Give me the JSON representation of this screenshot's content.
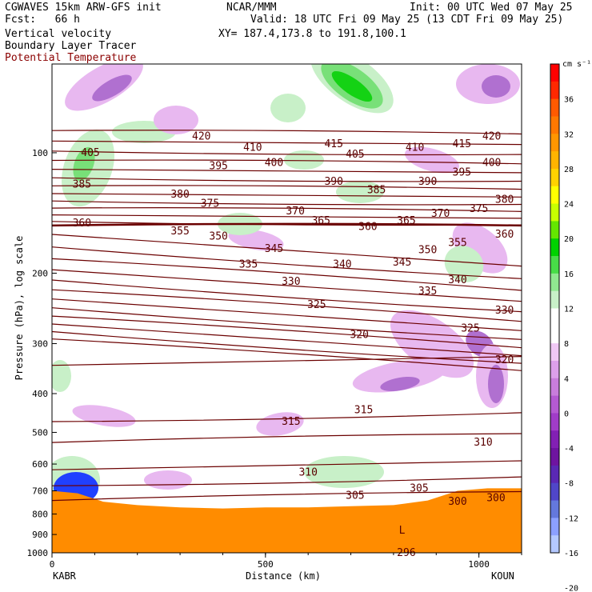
{
  "header": {
    "left": [
      "CGWAVES 15km ARW-GFS init",
      "Fcst:   66 h",
      "Vertical velocity",
      "Boundary Layer Tracer",
      "Potential Temperature"
    ],
    "center": [
      "NCAR/MMM",
      "Valid: 18 UTC Fri 09 May 25 (13 CDT Fri 09 May 25)",
      "XY= 187.4,173.8 to 191.8,100.1"
    ],
    "right": "Init: 00 UTC Wed 07 May 25"
  },
  "colors": {
    "theta": "#6b0000",
    "terrain": "#ff8c00",
    "up_light": "#c8f0c8",
    "up_mid": "#78e078",
    "up_strong": "#14d214",
    "down_light": "#e8b8f0",
    "down_mid": "#b070d0",
    "down_strong": "#8020a0"
  },
  "chart_data": {
    "type": "cross-section",
    "xlabel": "Distance (km)",
    "ylabel": "Pressure (hPa), log scale",
    "x_ticks": [
      "0",
      "500",
      "1000"
    ],
    "y_ticks": [
      "100",
      "200",
      "300",
      "400",
      "500",
      "600",
      "700",
      "800",
      "900",
      "1000"
    ],
    "xlim": [
      0,
      1100
    ],
    "ylim": [
      1000,
      60
    ],
    "left_station": "KABR",
    "right_station": "KOUN",
    "contour_labels": [
      {
        "text": "420",
        "x": 350,
        "p": 91
      },
      {
        "text": "420",
        "x": 1030,
        "p": 91
      },
      {
        "text": "410",
        "x": 470,
        "p": 97
      },
      {
        "text": "410",
        "x": 850,
        "p": 97
      },
      {
        "text": "415",
        "x": 660,
        "p": 95
      },
      {
        "text": "415",
        "x": 960,
        "p": 95
      },
      {
        "text": "405",
        "x": 90,
        "p": 100
      },
      {
        "text": "405",
        "x": 710,
        "p": 101
      },
      {
        "text": "400",
        "x": 520,
        "p": 106
      },
      {
        "text": "400",
        "x": 1030,
        "p": 106
      },
      {
        "text": "395",
        "x": 390,
        "p": 108
      },
      {
        "text": "395",
        "x": 960,
        "p": 112
      },
      {
        "text": "390",
        "x": 660,
        "p": 118
      },
      {
        "text": "390",
        "x": 880,
        "p": 118
      },
      {
        "text": "385",
        "x": 70,
        "p": 120
      },
      {
        "text": "385",
        "x": 760,
        "p": 124
      },
      {
        "text": "380",
        "x": 300,
        "p": 127
      },
      {
        "text": "380",
        "x": 1060,
        "p": 131
      },
      {
        "text": "375",
        "x": 370,
        "p": 134
      },
      {
        "text": "375",
        "x": 1000,
        "p": 138
      },
      {
        "text": "370",
        "x": 570,
        "p": 140
      },
      {
        "text": "370",
        "x": 910,
        "p": 142
      },
      {
        "text": "365",
        "x": 630,
        "p": 148
      },
      {
        "text": "365",
        "x": 830,
        "p": 148
      },
      {
        "text": "360",
        "x": 70,
        "p": 150
      },
      {
        "text": "360",
        "x": 740,
        "p": 153
      },
      {
        "text": "360",
        "x": 1060,
        "p": 160
      },
      {
        "text": "355",
        "x": 300,
        "p": 157
      },
      {
        "text": "355",
        "x": 950,
        "p": 168
      },
      {
        "text": "350",
        "x": 390,
        "p": 162
      },
      {
        "text": "350",
        "x": 880,
        "p": 175
      },
      {
        "text": "345",
        "x": 520,
        "p": 174
      },
      {
        "text": "345",
        "x": 820,
        "p": 188
      },
      {
        "text": "340",
        "x": 680,
        "p": 190
      },
      {
        "text": "340",
        "x": 950,
        "p": 208
      },
      {
        "text": "335",
        "x": 460,
        "p": 190
      },
      {
        "text": "335",
        "x": 880,
        "p": 222
      },
      {
        "text": "330",
        "x": 560,
        "p": 210
      },
      {
        "text": "330",
        "x": 1060,
        "p": 248
      },
      {
        "text": "325",
        "x": 620,
        "p": 240
      },
      {
        "text": "325",
        "x": 980,
        "p": 275
      },
      {
        "text": "320",
        "x": 720,
        "p": 285
      },
      {
        "text": "320",
        "x": 1060,
        "p": 330
      },
      {
        "text": "315",
        "x": 560,
        "p": 470
      },
      {
        "text": "315",
        "x": 730,
        "p": 440
      },
      {
        "text": "310",
        "x": 600,
        "p": 630
      },
      {
        "text": "310",
        "x": 1010,
        "p": 530
      },
      {
        "text": "305",
        "x": 710,
        "p": 720
      },
      {
        "text": "305",
        "x": 860,
        "p": 690
      },
      {
        "text": "300",
        "x": 950,
        "p": 745
      },
      {
        "text": "300",
        "x": 1040,
        "p": 730
      },
      {
        "text": "296",
        "x": 830,
        "p": 1000
      },
      {
        "text": "L",
        "x": 820,
        "p": 880
      }
    ],
    "colorbar": {
      "unit": "cm s⁻¹",
      "labels": [
        "36",
        "32",
        "28",
        "24",
        "20",
        "16",
        "12",
        "8",
        "4",
        "0",
        "-4",
        "-8",
        "-12",
        "-16",
        "-20"
      ],
      "colors": [
        "#ff0000",
        "#ff2800",
        "#ff5a00",
        "#ff7800",
        "#ff9600",
        "#ffb400",
        "#ffd200",
        "#ffff00",
        "#c8ff00",
        "#64e600",
        "#00d200",
        "#48dc48",
        "#90e890",
        "#c8f0c8",
        "#ffffff",
        "#ffffff",
        "#f0c8f5",
        "#dca0eb",
        "#c87ddc",
        "#b45ad2",
        "#a03cc8",
        "#8220b4",
        "#6e14a0",
        "#5a28b4",
        "#5046c8",
        "#6478dc",
        "#8ca0ff",
        "#b4c8ff"
      ]
    }
  }
}
